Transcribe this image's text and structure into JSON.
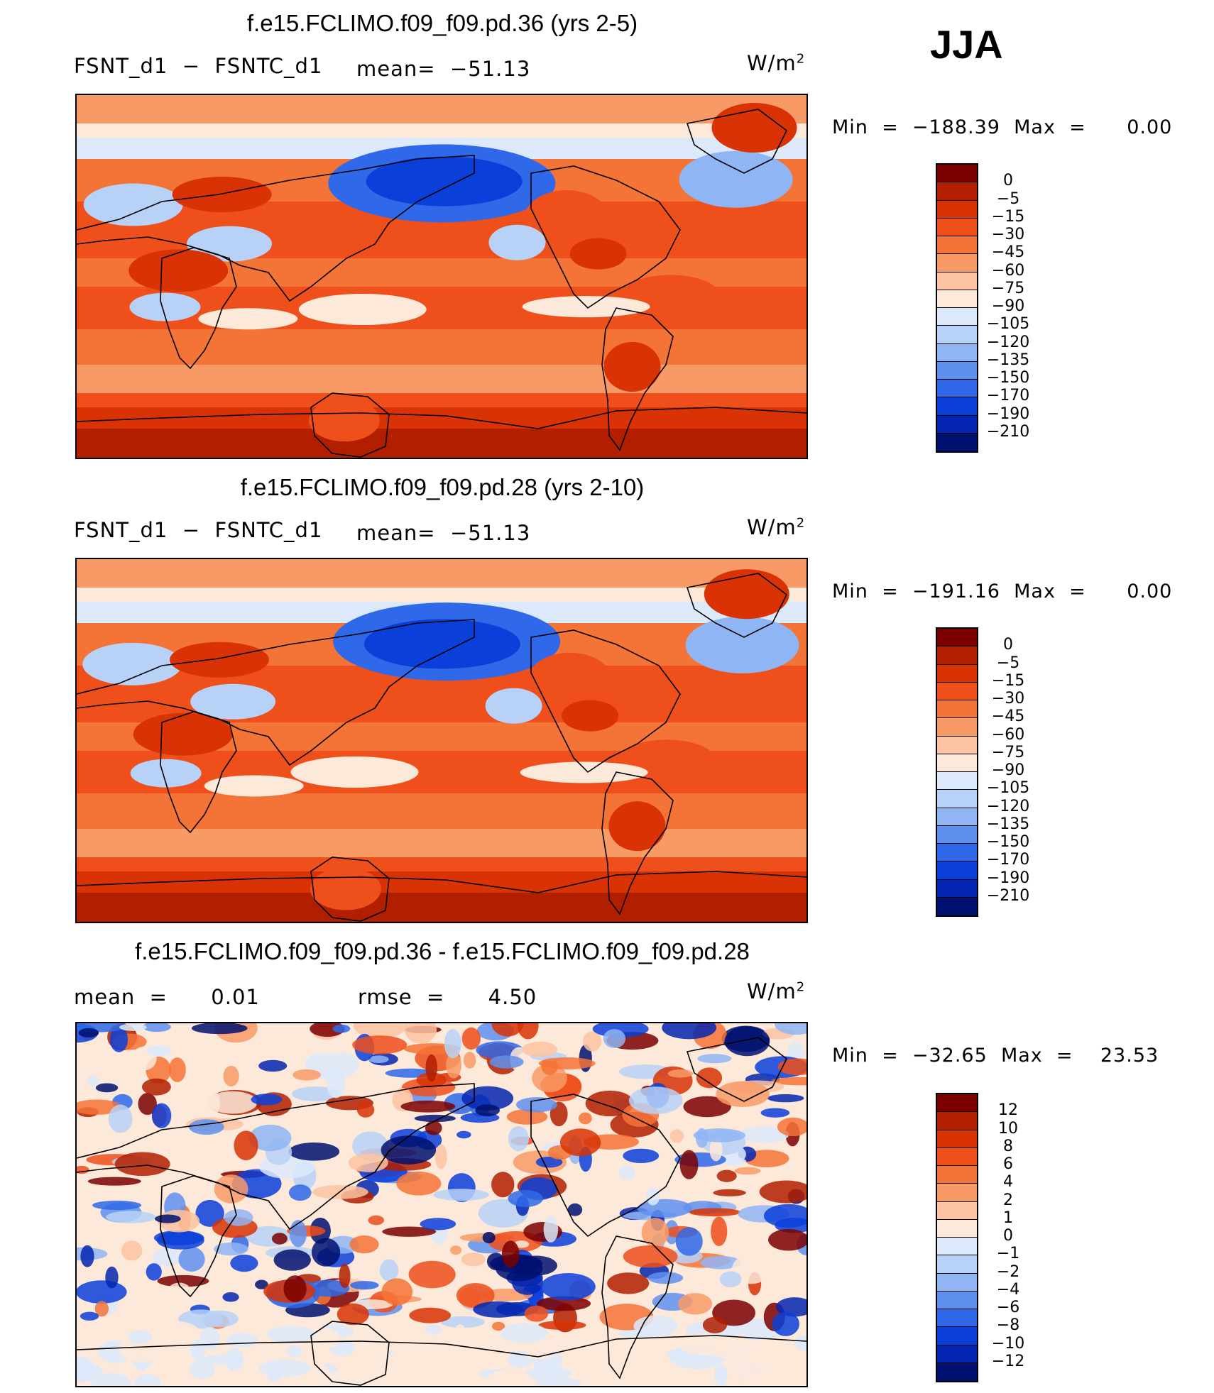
{
  "season": "JJA",
  "panels": [
    {
      "title": "f.e15.FCLIMO.f09_f09.pd.36 (yrs 2-5)",
      "left_label": "FSNT_d1  −  FSNTC_d1",
      "mid_label": "mean=  −51.13",
      "units_base": "W/m",
      "units_exp": "2",
      "minmax": "Min  =  −188.39  Max  =      0.00",
      "palette": "neg",
      "seed": 3
    },
    {
      "title": "f.e15.FCLIMO.f09_f09.pd.28 (yrs 2-10)",
      "left_label": "FSNT_d1  −  FSNTC_d1",
      "mid_label": "mean=  −51.13",
      "units_base": "W/m",
      "units_exp": "2",
      "minmax": "Min  =  −191.16  Max  =      0.00",
      "palette": "neg",
      "seed": 7
    },
    {
      "title": "f.e15.FCLIMO.f09_f09.pd.36 - f.e15.FCLIMO.f09_f09.pd.28",
      "left_label": "mean  =      0.01",
      "mid_label": "rmse  =      4.50",
      "units_base": "W/m",
      "units_exp": "2",
      "minmax": "Min  =  −32.65  Max  =    23.53",
      "palette": "diff",
      "seed": 11
    }
  ],
  "colorbars": {
    "neg": {
      "labels": [
        "0",
        "−5",
        "−15",
        "−30",
        "−45",
        "−60",
        "−75",
        "−90",
        "−105",
        "−120",
        "−135",
        "−150",
        "−170",
        "−190",
        "−210"
      ],
      "colors": [
        "#7a0000",
        "#b21e00",
        "#d83205",
        "#ef4f1b",
        "#f47337",
        "#f89a66",
        "#fbc3a1",
        "#fde9d9",
        "#dce9fa",
        "#b7d1f7",
        "#8fb5f4",
        "#5f90ee",
        "#2f68e8",
        "#0a3fd9",
        "#0326b0",
        "#00106e"
      ]
    },
    "diff": {
      "labels": [
        "12",
        "10",
        "8",
        "6",
        "4",
        "2",
        "1",
        "0",
        "−1",
        "−2",
        "−4",
        "−6",
        "−8",
        "−10",
        "−12"
      ],
      "colors": [
        "#7a0000",
        "#b21e00",
        "#d83205",
        "#ef4f1b",
        "#f47337",
        "#f89a66",
        "#fbc3a1",
        "#fde9d9",
        "#dce9fa",
        "#b7d1f7",
        "#8fb5f4",
        "#5f90ee",
        "#2f68e8",
        "#0a3fd9",
        "#0326b0",
        "#00106e"
      ]
    }
  }
}
